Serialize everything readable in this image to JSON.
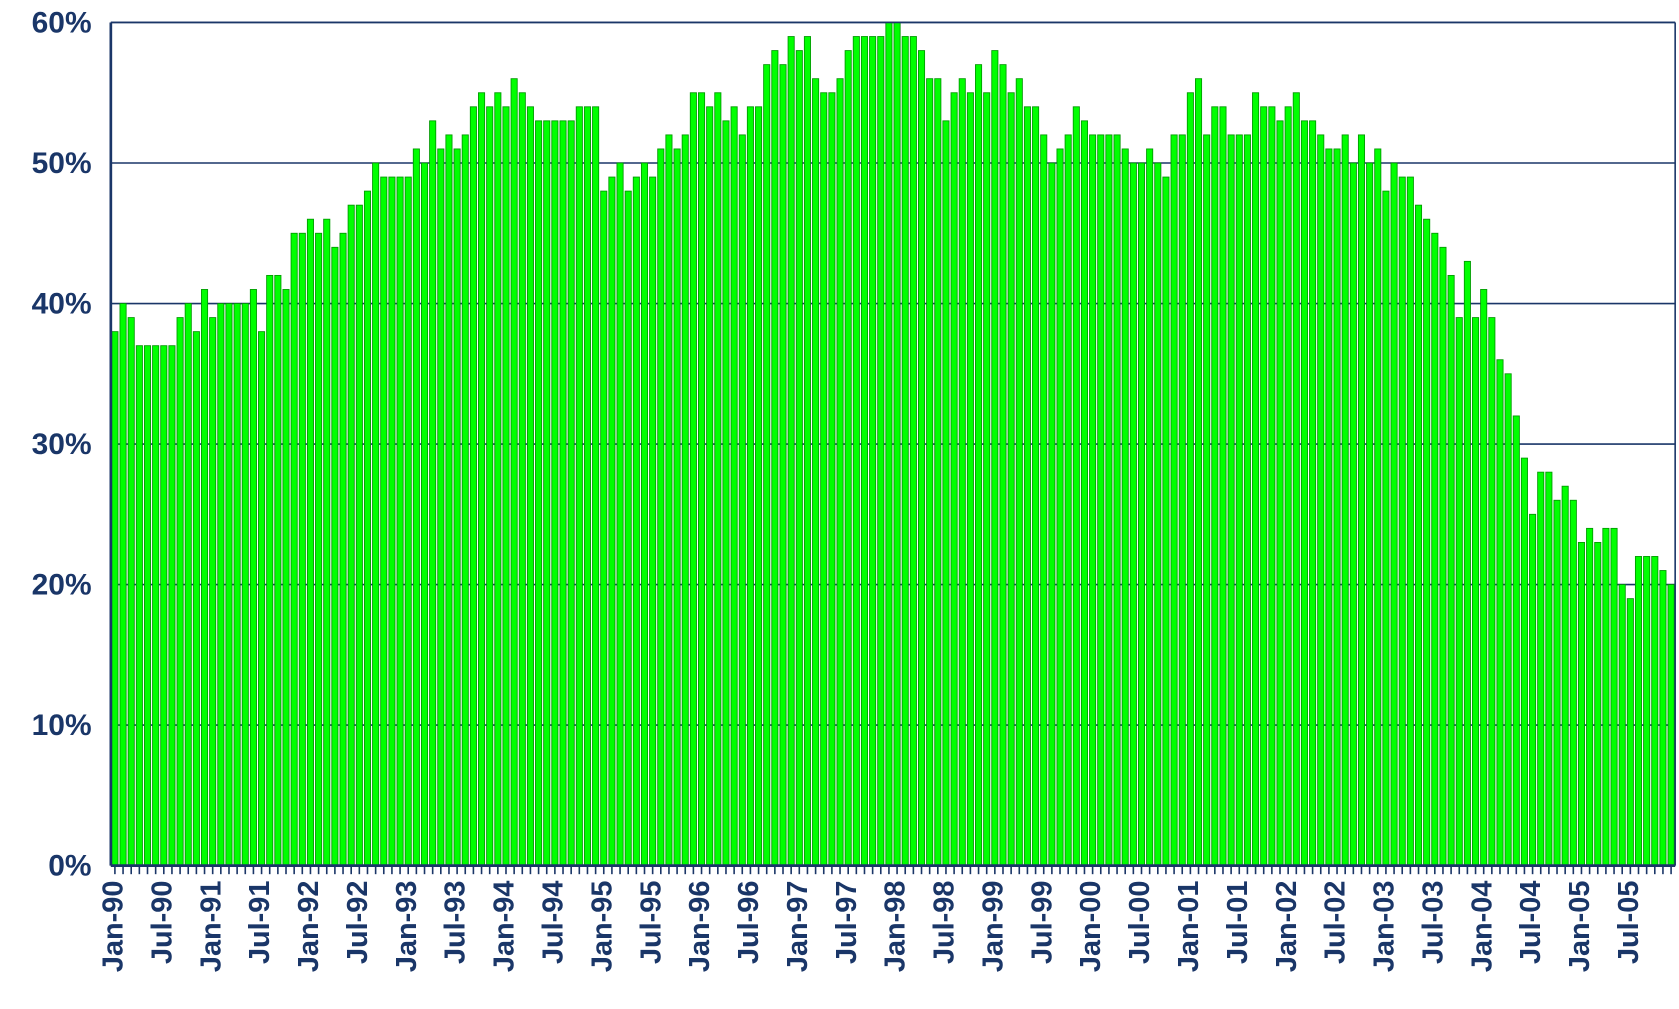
{
  "chart_data": {
    "type": "bar",
    "color": "#00ff00",
    "grid": true,
    "ylim": [
      0,
      60
    ],
    "yticks": [
      {
        "value": 0,
        "label": "0%"
      },
      {
        "value": 10,
        "label": "10%"
      },
      {
        "value": 20,
        "label": "20%"
      },
      {
        "value": 30,
        "label": "30%"
      },
      {
        "value": 40,
        "label": "40%"
      },
      {
        "value": 50,
        "label": "50%"
      },
      {
        "value": 60,
        "label": "60%"
      }
    ],
    "categories": [
      "Jan-90",
      null,
      null,
      null,
      null,
      null,
      "Jul-90",
      null,
      null,
      null,
      null,
      null,
      "Jan-91",
      null,
      null,
      null,
      null,
      null,
      "Jul-91",
      null,
      null,
      null,
      null,
      null,
      "Jan-92",
      null,
      null,
      null,
      null,
      null,
      "Jul-92",
      null,
      null,
      null,
      null,
      null,
      "Jan-93",
      null,
      null,
      null,
      null,
      null,
      "Jul-93",
      null,
      null,
      null,
      null,
      null,
      "Jan-94",
      null,
      null,
      null,
      null,
      null,
      "Jul-94",
      null,
      null,
      null,
      null,
      null,
      "Jan-95",
      null,
      null,
      null,
      null,
      null,
      "Jul-95",
      null,
      null,
      null,
      null,
      null,
      "Jan-96",
      null,
      null,
      null,
      null,
      null,
      "Jul-96",
      null,
      null,
      null,
      null,
      null,
      "Jan-97",
      null,
      null,
      null,
      null,
      null,
      "Jul-97",
      null,
      null,
      null,
      null,
      null,
      "Jan-98",
      null,
      null,
      null,
      null,
      null,
      "Jul-98",
      null,
      null,
      null,
      null,
      null,
      "Jan-99",
      null,
      null,
      null,
      null,
      null,
      "Jul-99",
      null,
      null,
      null,
      null,
      null,
      "Jan-00",
      null,
      null,
      null,
      null,
      null,
      "Jul-00",
      null,
      null,
      null,
      null,
      null,
      "Jan-01",
      null,
      null,
      null,
      null,
      null,
      "Jul-01",
      null,
      null,
      null,
      null,
      null,
      "Jan-02",
      null,
      null,
      null,
      null,
      null,
      "Jul-02",
      null,
      null,
      null,
      null,
      null,
      "Jan-03",
      null,
      null,
      null,
      null,
      null,
      "Jul-03",
      null,
      null,
      null,
      null,
      null,
      "Jan-04",
      null,
      null,
      null,
      null,
      null,
      "Jul-04",
      null,
      null,
      null,
      null,
      null,
      "Jan-05",
      null,
      null,
      null,
      null,
      null,
      "Jul-05",
      null,
      null,
      null,
      null,
      null
    ],
    "values": [
      38,
      40,
      39,
      37,
      37,
      37,
      37,
      37,
      39,
      40,
      38,
      41,
      39,
      40,
      40,
      40,
      40,
      41,
      38,
      42,
      42,
      41,
      45,
      45,
      46,
      45,
      46,
      44,
      45,
      47,
      47,
      48,
      50,
      49,
      49,
      49,
      49,
      51,
      50,
      53,
      51,
      52,
      51,
      52,
      54,
      55,
      54,
      55,
      54,
      56,
      55,
      54,
      53,
      53,
      53,
      53,
      53,
      54,
      54,
      54,
      48,
      49,
      50,
      48,
      49,
      50,
      49,
      51,
      52,
      51,
      52,
      55,
      55,
      54,
      55,
      53,
      54,
      52,
      54,
      54,
      57,
      58,
      57,
      59,
      58,
      59,
      56,
      55,
      55,
      56,
      58,
      59,
      59,
      59,
      59,
      60,
      60,
      59,
      59,
      58,
      56,
      56,
      53,
      55,
      56,
      55,
      57,
      55,
      58,
      57,
      55,
      56,
      54,
      54,
      52,
      50,
      51,
      52,
      54,
      53,
      52,
      52,
      52,
      52,
      51,
      50,
      50,
      51,
      50,
      49,
      52,
      52,
      55,
      56,
      52,
      54,
      54,
      52,
      52,
      52,
      55,
      54,
      54,
      53,
      54,
      55,
      53,
      53,
      52,
      51,
      51,
      52,
      50,
      52,
      50,
      51,
      48,
      50,
      49,
      49,
      47,
      46,
      45,
      44,
      42,
      39,
      43,
      39,
      41,
      39,
      36,
      35,
      32,
      29,
      25,
      28,
      28,
      26,
      27,
      26,
      23,
      24,
      23,
      24,
      24,
      20,
      19,
      22,
      22,
      22,
      21,
      20
    ]
  }
}
